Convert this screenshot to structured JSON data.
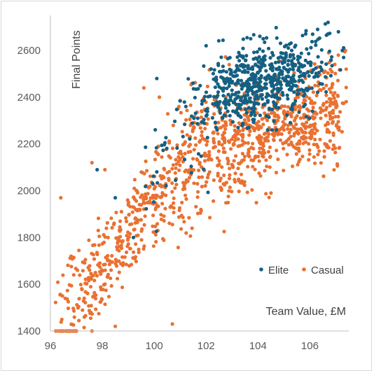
{
  "chart_data": {
    "type": "scatter",
    "title": "",
    "xlabel": "Team Value, £M",
    "ylabel": "Final Points",
    "xlim": [
      96,
      107.5
    ],
    "ylim": [
      1400,
      2750
    ],
    "x_ticks": [
      96,
      98,
      100,
      102,
      104,
      106
    ],
    "y_ticks": [
      1400,
      1600,
      1800,
      2000,
      2200,
      2400,
      2600
    ],
    "grid": false,
    "legend": "bottom-right",
    "series": [
      {
        "name": "Casual",
        "color": "#E97132",
        "count": 1150,
        "x_range": [
          96.2,
          107.4
        ],
        "y_range": [
          1400,
          2600
        ],
        "trend": "increasing; approx 1700 at £98M, 2050 at £100M, 2300 at £102M, 2450 at £104M, 2500 at £106M",
        "sample_points": [
          [
            96.4,
            1970
          ],
          [
            96.9,
            1640
          ],
          [
            97.3,
            1540
          ],
          [
            97.6,
            2120
          ],
          [
            98.1,
            2090
          ],
          [
            98.5,
            1420
          ],
          [
            99.0,
            1940
          ],
          [
            99.6,
            2440
          ],
          [
            100.2,
            2400
          ],
          [
            100.7,
            1430
          ],
          [
            101.2,
            1980
          ],
          [
            101.8,
            2290
          ],
          [
            102.5,
            2200
          ],
          [
            103.2,
            2330
          ],
          [
            104.0,
            2390
          ],
          [
            104.5,
            1990
          ],
          [
            105.0,
            2340
          ],
          [
            105.5,
            2180
          ],
          [
            106.2,
            2450
          ],
          [
            106.8,
            2380
          ],
          [
            107.4,
            2520
          ]
        ]
      },
      {
        "name": "Elite",
        "color": "#156082",
        "count": 650,
        "x_range": [
          97.8,
          107.3
        ],
        "y_range": [
          1790,
          2720
        ],
        "trend": "mostly clustered between £102M and £107M with 2400 to 2700 points",
        "sample_points": [
          [
            97.8,
            2090
          ],
          [
            98.5,
            1970
          ],
          [
            99.2,
            1800
          ],
          [
            100.1,
            2480
          ],
          [
            101.5,
            2460
          ],
          [
            102.0,
            2620
          ],
          [
            102.7,
            2380
          ],
          [
            103.3,
            2580
          ],
          [
            103.8,
            2500
          ],
          [
            104.2,
            2650
          ],
          [
            104.8,
            2520
          ],
          [
            105.3,
            2600
          ],
          [
            105.8,
            2490
          ],
          [
            106.3,
            2690
          ],
          [
            106.7,
            2720
          ],
          [
            107.1,
            2680
          ],
          [
            107.3,
            2570
          ]
        ]
      }
    ]
  }
}
